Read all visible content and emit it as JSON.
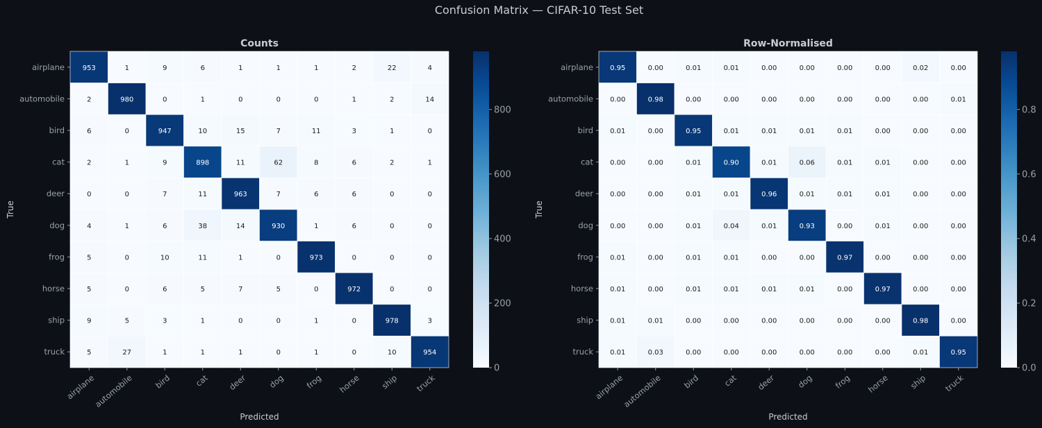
{
  "suptitle": "Confusion Matrix — CIFAR-10 Test Set",
  "colors": {
    "background": "#0d1017",
    "text": "#c9ccd3",
    "cmap_low": "#f7fbff",
    "cmap_high": "#08306b",
    "cell_border": "#ffffff"
  },
  "chart_data": [
    {
      "type": "heatmap",
      "title": "Counts",
      "xlabel": "Predicted",
      "ylabel": "True",
      "labels": [
        "airplane",
        "automobile",
        "bird",
        "cat",
        "deer",
        "dog",
        "frog",
        "horse",
        "ship",
        "truck"
      ],
      "value_format": "int",
      "vmin": 0,
      "vmax": 980,
      "colorbar_ticks": [
        0,
        200,
        400,
        600,
        800
      ],
      "colorbar_tick_labels": [
        "0",
        "200",
        "400",
        "600",
        "800"
      ],
      "matrix": [
        [
          953,
          1,
          9,
          6,
          1,
          1,
          1,
          2,
          22,
          4
        ],
        [
          2,
          980,
          0,
          1,
          0,
          0,
          0,
          1,
          2,
          14
        ],
        [
          6,
          0,
          947,
          10,
          15,
          7,
          11,
          3,
          1,
          0
        ],
        [
          2,
          1,
          9,
          898,
          11,
          62,
          8,
          6,
          2,
          1
        ],
        [
          0,
          0,
          7,
          11,
          963,
          7,
          6,
          6,
          0,
          0
        ],
        [
          4,
          1,
          6,
          38,
          14,
          930,
          1,
          6,
          0,
          0
        ],
        [
          5,
          0,
          10,
          11,
          1,
          0,
          973,
          0,
          0,
          0
        ],
        [
          5,
          0,
          6,
          5,
          7,
          5,
          0,
          972,
          0,
          0
        ],
        [
          9,
          5,
          3,
          1,
          0,
          0,
          1,
          0,
          978,
          3
        ],
        [
          5,
          27,
          1,
          1,
          1,
          0,
          1,
          0,
          10,
          954
        ]
      ]
    },
    {
      "type": "heatmap",
      "title": "Row-Normalised",
      "xlabel": "Predicted",
      "ylabel": "True",
      "labels": [
        "airplane",
        "automobile",
        "bird",
        "cat",
        "deer",
        "dog",
        "frog",
        "horse",
        "ship",
        "truck"
      ],
      "value_format": "2f",
      "vmin": 0.0,
      "vmax": 0.98,
      "colorbar_ticks": [
        0.0,
        0.2,
        0.4,
        0.6,
        0.8
      ],
      "colorbar_tick_labels": [
        "0.0",
        "0.2",
        "0.4",
        "0.6",
        "0.8"
      ],
      "matrix": [
        [
          0.95,
          0.0,
          0.01,
          0.01,
          0.0,
          0.0,
          0.0,
          0.0,
          0.02,
          0.0
        ],
        [
          0.0,
          0.98,
          0.0,
          0.0,
          0.0,
          0.0,
          0.0,
          0.0,
          0.0,
          0.01
        ],
        [
          0.01,
          0.0,
          0.95,
          0.01,
          0.01,
          0.01,
          0.01,
          0.0,
          0.0,
          0.0
        ],
        [
          0.0,
          0.0,
          0.01,
          0.9,
          0.01,
          0.06,
          0.01,
          0.01,
          0.0,
          0.0
        ],
        [
          0.0,
          0.0,
          0.01,
          0.01,
          0.96,
          0.01,
          0.01,
          0.01,
          0.0,
          0.0
        ],
        [
          0.0,
          0.0,
          0.01,
          0.04,
          0.01,
          0.93,
          0.0,
          0.01,
          0.0,
          0.0
        ],
        [
          0.01,
          0.0,
          0.01,
          0.01,
          0.0,
          0.0,
          0.97,
          0.0,
          0.0,
          0.0
        ],
        [
          0.01,
          0.0,
          0.01,
          0.01,
          0.01,
          0.01,
          0.0,
          0.97,
          0.0,
          0.0
        ],
        [
          0.01,
          0.01,
          0.0,
          0.0,
          0.0,
          0.0,
          0.0,
          0.0,
          0.98,
          0.0
        ],
        [
          0.01,
          0.03,
          0.0,
          0.0,
          0.0,
          0.0,
          0.0,
          0.0,
          0.01,
          0.95
        ]
      ]
    }
  ]
}
